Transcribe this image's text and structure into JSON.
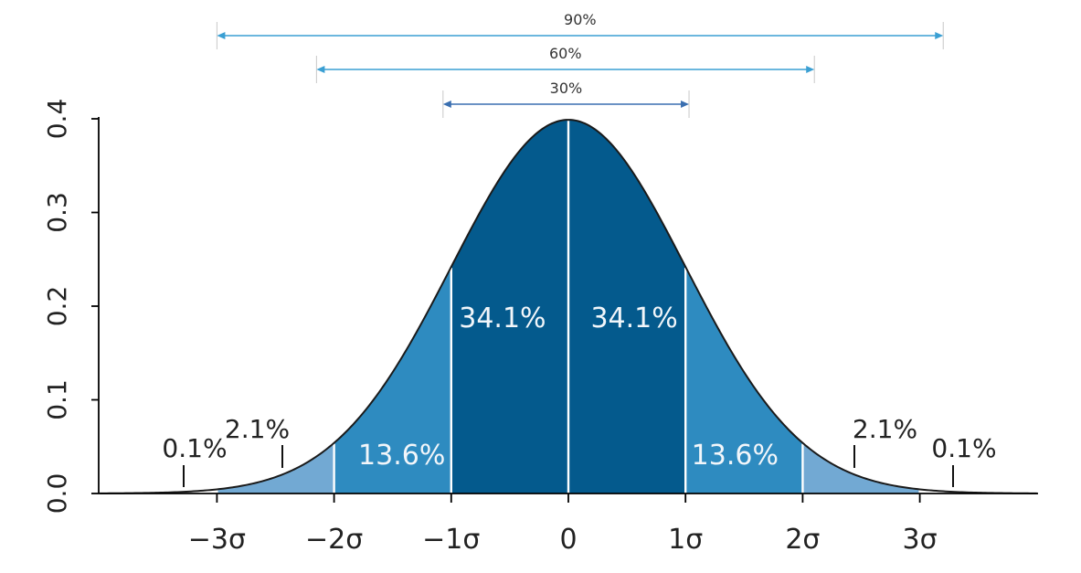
{
  "chart_data": {
    "type": "area",
    "distribution": "standard normal",
    "x_range": [
      -4,
      4
    ],
    "ylim": [
      0,
      0.4
    ],
    "y_ticks": [
      "0.0",
      "0.1",
      "0.2",
      "0.3",
      "0.4"
    ],
    "x_ticks": [
      {
        "x": -3,
        "label": "−3σ"
      },
      {
        "x": -2,
        "label": "−2σ"
      },
      {
        "x": -1,
        "label": "−1σ"
      },
      {
        "x": 0,
        "label": "0"
      },
      {
        "x": 1,
        "label": "1σ"
      },
      {
        "x": 2,
        "label": "2σ"
      },
      {
        "x": 3,
        "label": "3σ"
      }
    ],
    "bands": [
      {
        "from": -3,
        "to": -2,
        "value": 2.1,
        "label": "2.1%"
      },
      {
        "from": -2,
        "to": -1,
        "value": 13.6,
        "label": "13.6%"
      },
      {
        "from": -1,
        "to": 0,
        "value": 34.1,
        "label": "34.1%"
      },
      {
        "from": 0,
        "to": 1,
        "value": 34.1,
        "label": "34.1%"
      },
      {
        "from": 1,
        "to": 2,
        "value": 13.6,
        "label": "13.6%"
      },
      {
        "from": 2,
        "to": 3,
        "value": 2.1,
        "label": "2.1%"
      }
    ],
    "tails": [
      {
        "side": "left",
        "value": 0.1,
        "label": "0.1%"
      },
      {
        "side": "right",
        "value": 0.1,
        "label": "0.1%"
      }
    ],
    "intervals": [
      {
        "label": "90%",
        "from": -3.0,
        "to": 3.2
      },
      {
        "label": "60%",
        "from": -2.15,
        "to": 2.1
      },
      {
        "label": "30%",
        "from": -1.07,
        "to": 1.03
      }
    ],
    "colors": {
      "tail_band": "#72a9d3",
      "mid_band": "#2e8bc0",
      "center_band": "#045a8d",
      "curve": "#1a1a1a",
      "interval_90": "#3a9fd3",
      "interval_60": "#3a9fd3",
      "interval_30": "#3a6fb0"
    }
  }
}
